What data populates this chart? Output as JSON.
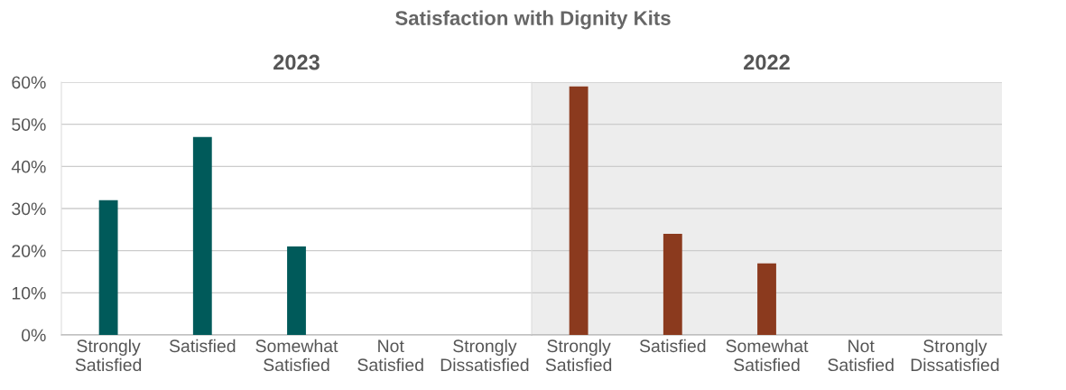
{
  "chart_data": [
    {
      "type": "bar",
      "title": "Satisfaction with Dignity Kits",
      "subtitle": "2023",
      "categories": [
        "Strongly\nSatisfied",
        "Satisfied",
        "Somewhat\nSatisfied",
        "Not\nSatisfied",
        "Strongly\nDissatisfied"
      ],
      "values": [
        32,
        47,
        21,
        0,
        0
      ],
      "color": "#005a5a",
      "ylim": [
        0,
        60
      ],
      "yticks": [
        {
          "value": 0,
          "label": "0%"
        },
        {
          "value": 10,
          "label": "10%"
        },
        {
          "value": 20,
          "label": "20%"
        },
        {
          "value": 30,
          "label": "30%"
        },
        {
          "value": 40,
          "label": "40%"
        },
        {
          "value": 50,
          "label": "50%"
        },
        {
          "value": 60,
          "label": "60%"
        }
      ],
      "grid": "y"
    },
    {
      "type": "bar",
      "subtitle": "2022",
      "categories": [
        "Strongly\nSatisfied",
        "Satisfied",
        "Somewhat\nSatisfied",
        "Not\nSatisfied",
        "Strongly\nDissatisfied"
      ],
      "values": [
        59,
        24,
        17,
        0,
        0
      ],
      "color": "#8b3a1e",
      "ylim": [
        0,
        60
      ],
      "yticks": [
        {
          "value": 0,
          "label": null
        },
        {
          "value": 10,
          "label": null
        },
        {
          "value": 20,
          "label": null
        },
        {
          "value": 30,
          "label": null
        },
        {
          "value": 40,
          "label": null
        },
        {
          "value": 50,
          "label": null
        },
        {
          "value": 60,
          "label": null
        }
      ],
      "grid": "y",
      "tick_labels": "x"
    }
  ]
}
